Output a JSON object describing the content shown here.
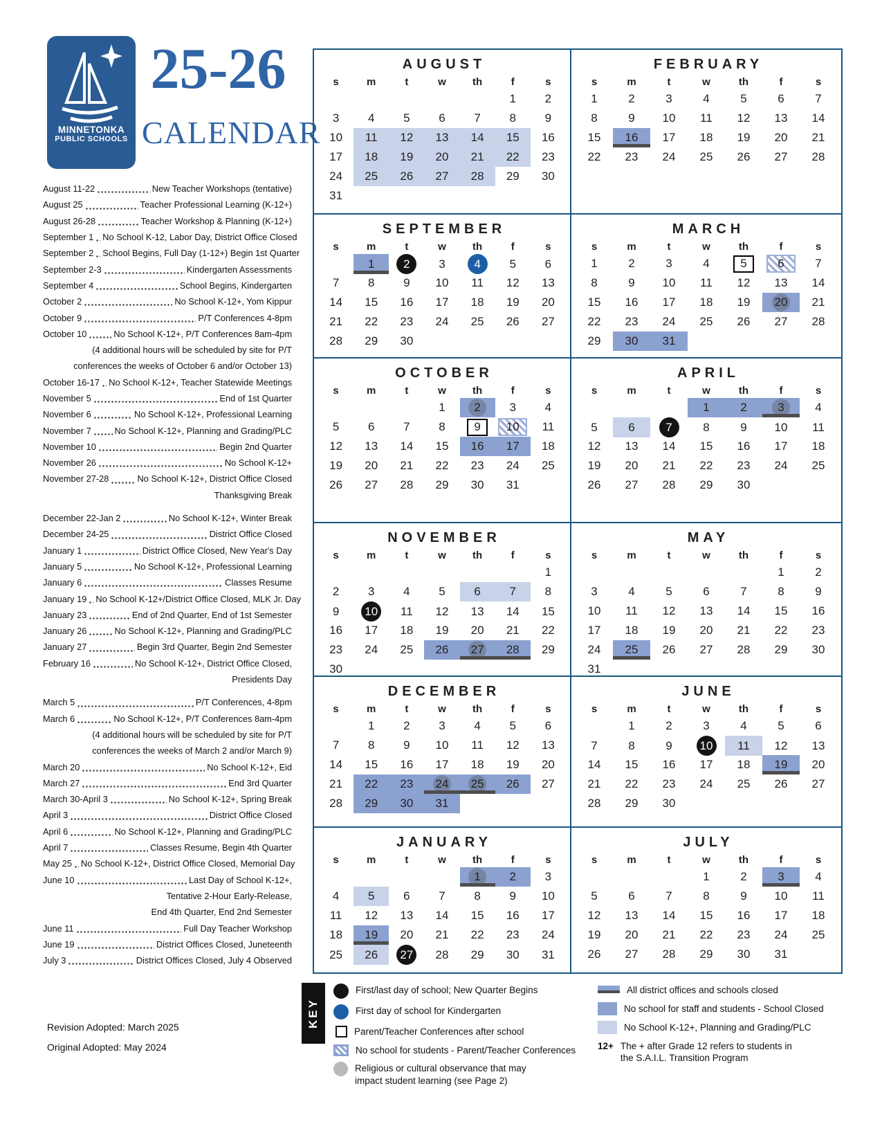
{
  "header": {
    "logo_line1": "MINNETONKA",
    "logo_line2": "PUBLIC SCHOOLS",
    "title_year": "25-26",
    "title_word": "CALENDAR"
  },
  "events": [
    {
      "d": "August 11-22",
      "t": "New Teacher Workshops (tentative)"
    },
    {
      "d": "August 25",
      "t": "Teacher Professional Learning (K-12+)"
    },
    {
      "d": "August 26-28",
      "t": "Teacher Workshop & Planning (K-12+)"
    },
    {
      "d": "September 1",
      "t": "No School K-12, Labor Day, District Office Closed"
    },
    {
      "d": "September 2",
      "t": "School Begins, Full Day (1-12+) Begin 1st Quarter"
    },
    {
      "d": "September 2-3",
      "t": "Kindergarten Assessments"
    },
    {
      "d": "September 4",
      "t": "School Begins, Kindergarten"
    },
    {
      "d": "October 2",
      "t": "No School K-12+, Yom Kippur"
    },
    {
      "d": "October 9",
      "t": "P/T Conferences 4-8pm"
    },
    {
      "d": "October 10",
      "t": "No School K-12+, P/T Conferences 8am-4pm"
    },
    {
      "c": "(4 additional hours will be scheduled by site for P/T"
    },
    {
      "c": "conferences the weeks of October 6 and/or October 13)"
    },
    {
      "d": "October 16-17",
      "t": "No School K-12+, Teacher Statewide Meetings"
    },
    {
      "d": "November 5",
      "t": "End of 1st Quarter"
    },
    {
      "d": "November 6",
      "t": "No School K-12+, Professional Learning"
    },
    {
      "d": "November 7",
      "t": "No School K-12+, Planning and Grading/PLC"
    },
    {
      "d": "November 10",
      "t": "Begin 2nd Quarter"
    },
    {
      "d": "November 26",
      "t": "No School K-12+"
    },
    {
      "d": "November 27-28",
      "t": "No School K-12+, District Office Closed"
    },
    {
      "c": "Thanksgiving Break"
    },
    {
      "sp": true
    },
    {
      "d": "December 22-Jan 2",
      "t": "No School K-12+, Winter Break"
    },
    {
      "d": "December 24-25",
      "t": "District Office Closed"
    },
    {
      "d": "January 1",
      "t": "District Office Closed, New Year's Day"
    },
    {
      "d": "January 5",
      "t": "No School K-12+, Professional Learning"
    },
    {
      "d": "January 6",
      "t": "Classes Resume"
    },
    {
      "d": "January 19",
      "t": "No School K-12+/District Office Closed, MLK Jr. Day"
    },
    {
      "d": "January 23",
      "t": "End of 2nd Quarter, End of 1st Semester"
    },
    {
      "d": "January 26",
      "t": "No School K-12+, Planning and Grading/PLC"
    },
    {
      "d": "January 27",
      "t": "Begin 3rd Quarter, Begin 2nd Semester"
    },
    {
      "d": "February 16",
      "t": "No School K-12+, District Office Closed,"
    },
    {
      "c": "Presidents Day"
    },
    {
      "sp": true
    },
    {
      "d": "March 5",
      "t": "P/T Conferences, 4-8pm"
    },
    {
      "d": "March 6",
      "t": "No School K-12+, P/T Conferences 8am-4pm"
    },
    {
      "c": "(4 additional hours will be scheduled by site for P/T"
    },
    {
      "c": "conferences the weeks of March 2 and/or March 9)"
    },
    {
      "d": "March 20",
      "t": "No School K-12+, Eid"
    },
    {
      "d": "March 27",
      "t": "End 3rd Quarter"
    },
    {
      "d": "March 30-April 3",
      "t": "No School K-12+, Spring Break"
    },
    {
      "d": "April 3",
      "t": "District Office Closed"
    },
    {
      "d": "April 6",
      "t": "No School K-12+, Planning and Grading/PLC"
    },
    {
      "d": "April 7",
      "t": "Classes Resume, Begin 4th Quarter"
    },
    {
      "d": "May 25",
      "t": "No School K-12+, District Office Closed, Memorial Day"
    },
    {
      "d": "June 10",
      "t": "Last Day of School K-12+,"
    },
    {
      "c": "Tentative 2-Hour Early-Release,"
    },
    {
      "c": "End 4th Quarter, End 2nd Semester"
    },
    {
      "d": "June 11",
      "t": "Full Day Teacher Workshop"
    },
    {
      "d": "June 19",
      "t": "District Offices Closed, Juneteenth"
    },
    {
      "d": "July 3",
      "t": "District Offices Closed, July 4 Observed"
    }
  ],
  "calendar": {
    "day_headers": [
      "s",
      "m",
      "t",
      "w",
      "th",
      "f",
      "s"
    ],
    "months": [
      {
        "name": "AUGUST",
        "first_day": 5,
        "days": 31,
        "marks": {
          "11": "light",
          "12": "light",
          "13": "light",
          "14": "light",
          "15": "light",
          "18": "light",
          "19": "light",
          "20": "light",
          "21": "light",
          "22": "light",
          "25": "light",
          "26": "light",
          "27": "light",
          "28": "light"
        }
      },
      {
        "name": "FEBRUARY",
        "first_day": 0,
        "days": 28,
        "marks": {
          "16": "med bar"
        }
      },
      {
        "name": "SEPTEMBER",
        "first_day": 1,
        "days": 30,
        "marks": {
          "1": "med bar",
          "2": "black",
          "4": "kblue"
        }
      },
      {
        "name": "MARCH",
        "first_day": 0,
        "days": 31,
        "marks": {
          "5": "out",
          "6": "hatch",
          "20": "med gray",
          "30": "med",
          "31": "med"
        }
      },
      {
        "name": "OCTOBER",
        "first_day": 3,
        "days": 31,
        "marks": {
          "2": "med gray",
          "9": "out",
          "10": "hatch",
          "16": "med",
          "17": "med"
        }
      },
      {
        "name": "APRIL",
        "first_day": 3,
        "days": 30,
        "marks": {
          "1": "med",
          "2": "med",
          "3": "med gray bar",
          "6": "light",
          "7": "black"
        }
      },
      {
        "name": "NOVEMBER",
        "first_day": 6,
        "days": 30,
        "marks": {
          "6": "light",
          "7": "light",
          "10": "black",
          "26": "med",
          "27": "med gray bar",
          "28": "med bar"
        }
      },
      {
        "name": "MAY",
        "first_day": 5,
        "days": 31,
        "marks": {
          "25": "med bar"
        }
      },
      {
        "name": "DECEMBER",
        "first_day": 1,
        "days": 31,
        "marks": {
          "22": "med",
          "23": "med",
          "24": "med gray bar",
          "25": "med gray bar",
          "26": "med",
          "29": "med",
          "30": "med",
          "31": "med"
        }
      },
      {
        "name": "JUNE",
        "first_day": 1,
        "days": 30,
        "marks": {
          "10": "black",
          "11": "light",
          "19": "med bar"
        }
      },
      {
        "name": "JANUARY",
        "first_day": 4,
        "days": 31,
        "marks": {
          "1": "med gray bar",
          "2": "med",
          "5": "light",
          "19": "med bar",
          "26": "light",
          "27": "black"
        }
      },
      {
        "name": "JULY",
        "first_day": 3,
        "days": 31,
        "marks": {
          "3": "med bar"
        }
      }
    ]
  },
  "key": {
    "label": "KEY",
    "left": [
      {
        "icon": "black-circle",
        "name": "first-last-day-icon",
        "text": "First/last day of school;  New Quarter Begins"
      },
      {
        "icon": "blue-circle",
        "name": "kindergarten-first-day-icon",
        "text": "First day of school for Kindergarten"
      },
      {
        "icon": "outline-square",
        "name": "pt-conference-after-school-icon",
        "text": "Parent/Teacher Conferences after school"
      },
      {
        "icon": "hatch-square",
        "name": "no-school-pt-conference-icon",
        "text": "No school for students - Parent/Teacher Conferences"
      },
      {
        "icon": "gray-circle",
        "name": "religious-observance-icon",
        "text": "Religious or cultural observance that may\nimpact student learning (see Page 2)"
      }
    ],
    "right": [
      {
        "icon": "med-bar",
        "name": "offices-schools-closed-swatch",
        "text": "All district offices and schools closed"
      },
      {
        "icon": "med-square",
        "name": "school-closed-swatch",
        "text": "No school for staff and students - School Closed"
      },
      {
        "icon": "light-square",
        "name": "planning-grading-swatch",
        "text": "No School K-12+, Planning and Grading/PLC"
      },
      {
        "icon": "twelve-plus",
        "name": "twelve-plus-note",
        "prefix": "12+",
        "text": "The + after Grade 12 refers to students in\nthe S.A.I.L. Transition Program"
      }
    ]
  },
  "footer": {
    "revision": "Revision Adopted: March 2025",
    "original": "Original Adopted: May 2024"
  },
  "colors": {
    "border_blue": "#1a567f",
    "logo_blue": "#2a5b94",
    "title_blue": "#2f64a5",
    "highlight_medium": "#8ba1d0",
    "highlight_light": "#c8d2e9",
    "closed_bar": "#4d4d4d",
    "kindergarten_blue": "#1d5fa7",
    "black_circle": "#141414",
    "gray_circle": "#b9b9b9"
  }
}
